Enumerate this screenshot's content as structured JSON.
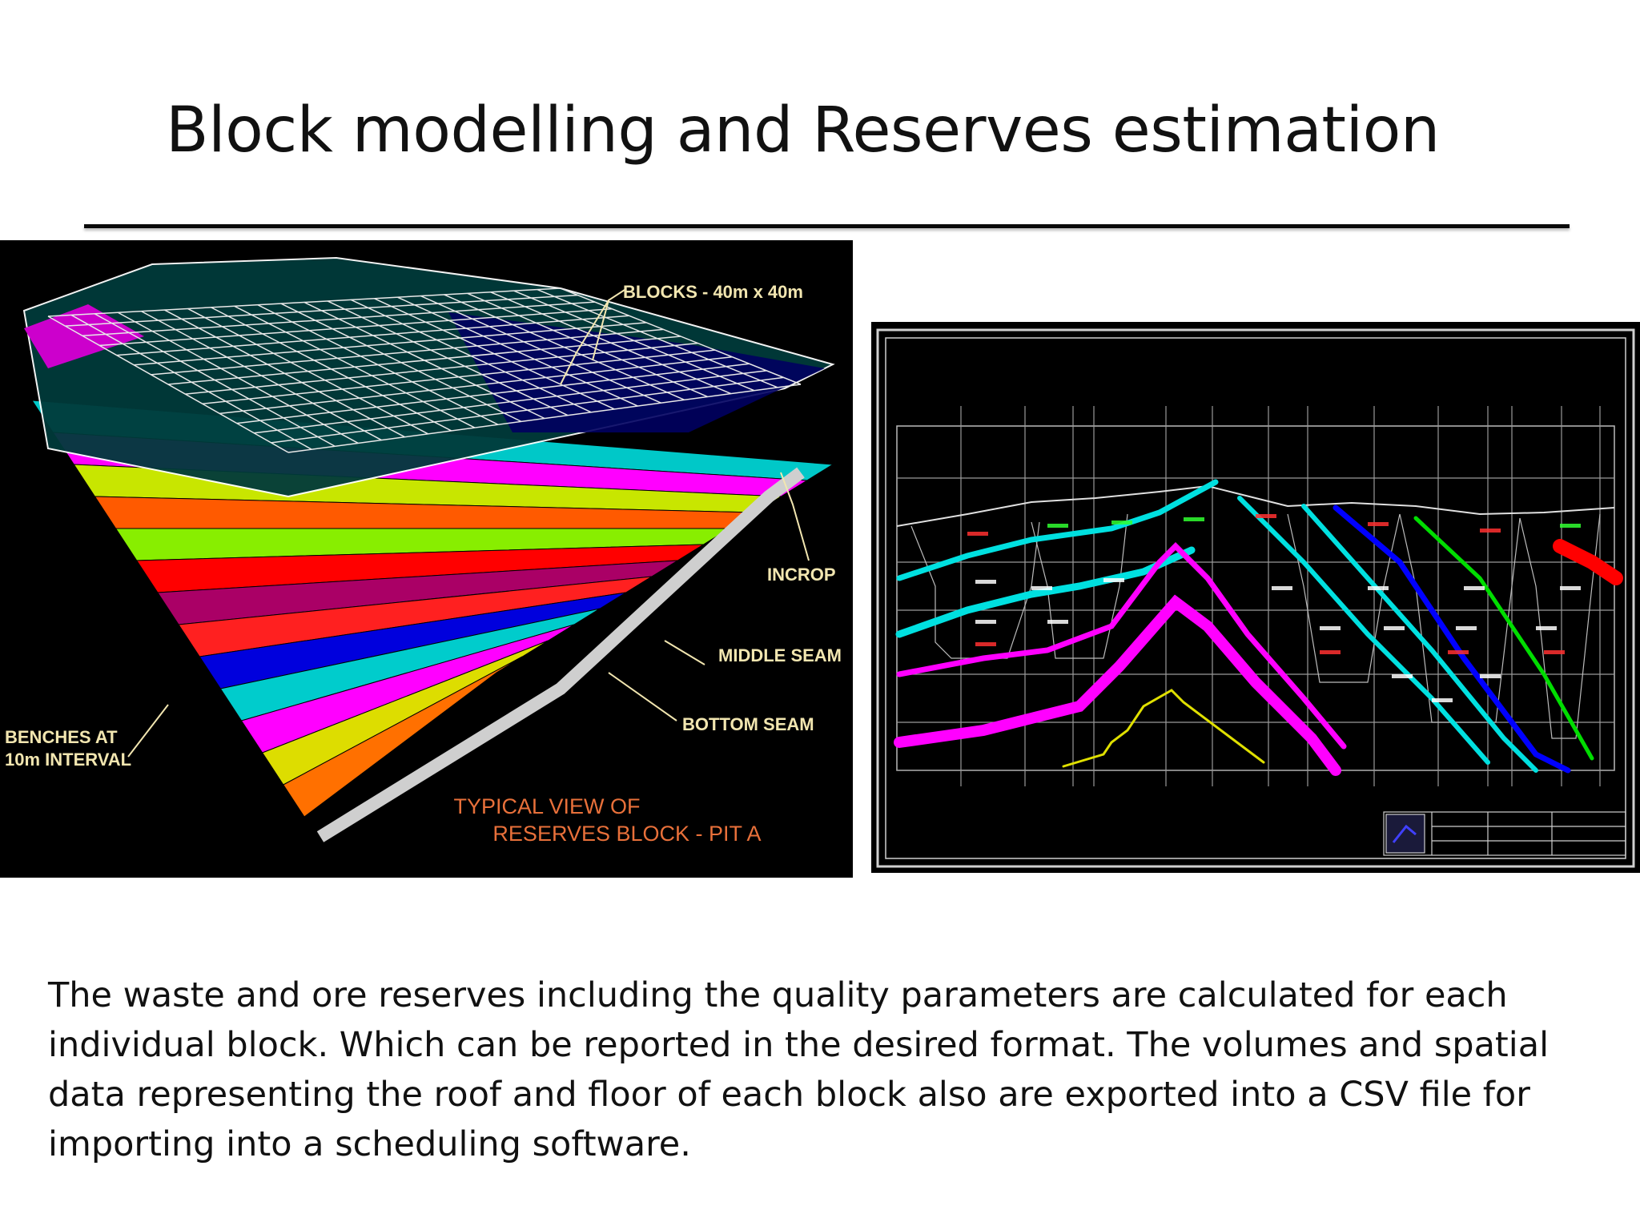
{
  "slide": {
    "title": "Block modelling and Reserves estimation",
    "body": "The waste and ore reserves including the quality parameters are calculated  for each individual block. Which can be reported in the desired format. The volumes and spatial data representing the roof and floor of each block also  are exported into a  CSV file for importing into a scheduling software."
  },
  "block_model": {
    "labels": {
      "blocks": "BLOCKS - 40m x 40m",
      "incrop": "INCROP",
      "middle_seam": "MIDDLE SEAM",
      "bottom_seam": "BOTTOM SEAM",
      "benches_line1": "BENCHES AT",
      "benches_line2": "10m INTERVAL",
      "caption_line1": "TYPICAL VIEW OF",
      "caption_line2": "RESERVES BLOCK - PIT A"
    },
    "label_color": "#f2e6b0",
    "caption_color": "#e8703a",
    "layer_colors": [
      "#00c8c8",
      "#ff00ff",
      "#c8e600",
      "#ff5a00",
      "#88ee00",
      "#ff0000",
      "#aa0066",
      "#ff2020",
      "#0000dd",
      "#00cccc",
      "#ff00ff",
      "#dddd00",
      "#ff7000"
    ]
  },
  "cross_section": {
    "frame_color": "#d0d0d0",
    "seam_colors": [
      "#00e0e0",
      "#ff00ff",
      "#e0e000",
      "#0000ff",
      "#00dd00",
      "#ff0000"
    ]
  }
}
